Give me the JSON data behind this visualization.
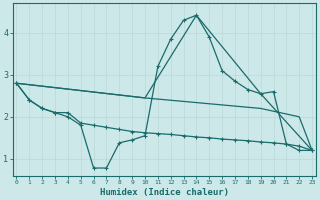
{
  "xlabel": "Humidex (Indice chaleur)",
  "bg_color": "#cde8e8",
  "grid_color": "#b8d8d8",
  "line_color": "#1a6b6b",
  "x_ticks": [
    0,
    1,
    2,
    3,
    4,
    5,
    6,
    7,
    8,
    9,
    10,
    11,
    12,
    13,
    14,
    15,
    16,
    17,
    18,
    19,
    20,
    21,
    22,
    23
  ],
  "ylim": [
    0.6,
    4.7
  ],
  "xlim": [
    -0.3,
    23.3
  ],
  "series": [
    {
      "x": [
        0,
        1,
        2,
        3,
        4,
        5,
        6,
        7,
        8,
        9,
        10,
        11,
        12,
        13,
        14,
        15,
        16,
        17,
        18,
        19,
        20,
        21,
        22,
        23
      ],
      "y": [
        2.8,
        2.4,
        2.2,
        2.1,
        2.0,
        1.8,
        0.78,
        0.78,
        1.38,
        1.45,
        1.55,
        3.2,
        3.85,
        4.3,
        4.42,
        3.9,
        3.1,
        2.85,
        2.65,
        2.55,
        2.6,
        1.35,
        1.2,
        1.2
      ],
      "marker": true
    },
    {
      "x": [
        0,
        1,
        2,
        3,
        4,
        5,
        6,
        7,
        8,
        9,
        10,
        11,
        12,
        13,
        14,
        15,
        16,
        17,
        18,
        19,
        20,
        21,
        22,
        23
      ],
      "y": [
        2.8,
        2.4,
        2.2,
        2.1,
        2.1,
        1.85,
        1.8,
        1.75,
        1.7,
        1.65,
        1.62,
        1.6,
        1.58,
        1.55,
        1.52,
        1.5,
        1.47,
        1.45,
        1.43,
        1.4,
        1.38,
        1.35,
        1.3,
        1.2
      ],
      "marker": true
    },
    {
      "x": [
        0,
        10,
        19,
        22,
        23
      ],
      "y": [
        2.8,
        2.45,
        2.2,
        2.0,
        1.2
      ],
      "marker": false
    },
    {
      "x": [
        0,
        10,
        14,
        19,
        23
      ],
      "y": [
        2.8,
        2.45,
        4.42,
        2.55,
        1.2
      ],
      "marker": false
    }
  ]
}
